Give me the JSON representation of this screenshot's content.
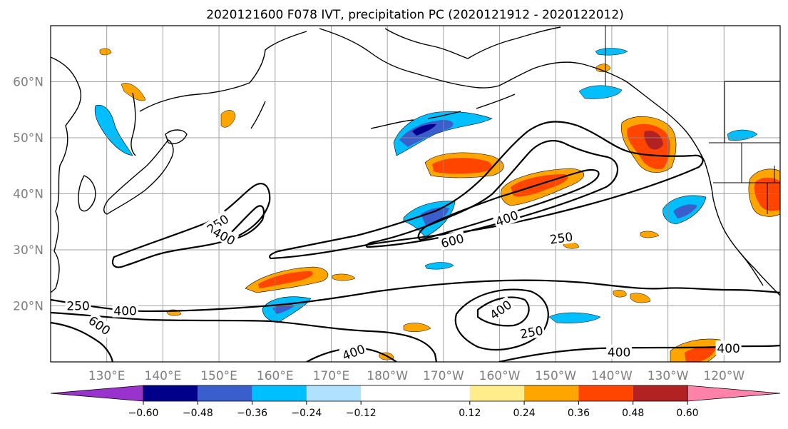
{
  "title": "2020121600 F078 IVT, precipitation PC (2020121912 - 2020122012)",
  "map": {
    "lon_range": [
      120,
      250
    ],
    "lat_range": [
      10,
      70
    ],
    "lon_ticks": [
      {
        "lon": 130,
        "label": "130°E"
      },
      {
        "lon": 140,
        "label": "140°E"
      },
      {
        "lon": 150,
        "label": "150°E"
      },
      {
        "lon": 160,
        "label": "160°E"
      },
      {
        "lon": 170,
        "label": "170°E"
      },
      {
        "lon": 180,
        "label": "180°W"
      },
      {
        "lon": 190,
        "label": "170°W"
      },
      {
        "lon": 200,
        "label": "160°W"
      },
      {
        "lon": 210,
        "label": "150°W"
      },
      {
        "lon": 220,
        "label": "140°W"
      },
      {
        "lon": 230,
        "label": "130°W"
      },
      {
        "lon": 240,
        "label": "120°W"
      }
    ],
    "lat_ticks": [
      {
        "lat": 20,
        "label": "20°N"
      },
      {
        "lat": 30,
        "label": "30°N"
      },
      {
        "lat": 40,
        "label": "40°N"
      },
      {
        "lat": 50,
        "label": "50°N"
      },
      {
        "lat": 60,
        "label": "60°N"
      }
    ],
    "grid_lon": [
      130,
      140,
      150,
      160,
      170,
      180,
      190,
      200,
      210,
      220,
      230,
      240
    ],
    "grid_lat": [
      20,
      30,
      40,
      50,
      60
    ],
    "contour_labels": [
      {
        "text": "250",
        "lon": 149.8,
        "lat": 34.6,
        "rot": -35
      },
      {
        "text": "400",
        "lon": 150.9,
        "lat": 32.4,
        "rot": 28
      },
      {
        "text": "400",
        "lon": 201.3,
        "lat": 35.6,
        "rot": -20
      },
      {
        "text": "600",
        "lon": 191.6,
        "lat": 31.6,
        "rot": -15
      },
      {
        "text": "250",
        "lon": 211.0,
        "lat": 32.1,
        "rot": -8
      },
      {
        "text": "250",
        "lon": 124.9,
        "lat": 20.0,
        "rot": 0
      },
      {
        "text": "400",
        "lon": 133.3,
        "lat": 19.1,
        "rot": 0
      },
      {
        "text": "600",
        "lon": 128.7,
        "lat": 16.5,
        "rot": 35
      },
      {
        "text": "400",
        "lon": 200.2,
        "lat": 19.3,
        "rot": -35
      },
      {
        "text": "250",
        "lon": 205.7,
        "lat": 15.3,
        "rot": -10
      },
      {
        "text": "400",
        "lon": 174.0,
        "lat": 11.7,
        "rot": -20
      },
      {
        "text": "400",
        "lon": 221.3,
        "lat": 11.7,
        "rot": 0
      },
      {
        "text": "400",
        "lon": 240.8,
        "lat": 12.4,
        "rot": 0
      }
    ]
  },
  "colorbar": {
    "colors": [
      "#9a32cd",
      "#00008b",
      "#3a5fcd",
      "#00bfff",
      "#b0e2ff",
      "#ffffff",
      "#ffec8b",
      "#ffa500",
      "#ff4500",
      "#b22222",
      "#ff82ab"
    ],
    "boundaries": [
      -0.72,
      -0.6,
      -0.48,
      -0.36,
      -0.24,
      -0.12,
      0.12,
      0.24,
      0.36,
      0.48,
      0.6,
      0.72
    ],
    "tick_values": [
      -0.6,
      -0.48,
      -0.36,
      -0.24,
      -0.12,
      0.12,
      0.24,
      0.36,
      0.48,
      0.6
    ],
    "tick_labels": [
      "−0.60",
      "−0.48",
      "−0.36",
      "−0.24",
      "−0.12",
      "0.12",
      "0.24",
      "0.36",
      "0.48",
      "0.60"
    ],
    "extend": "both"
  }
}
